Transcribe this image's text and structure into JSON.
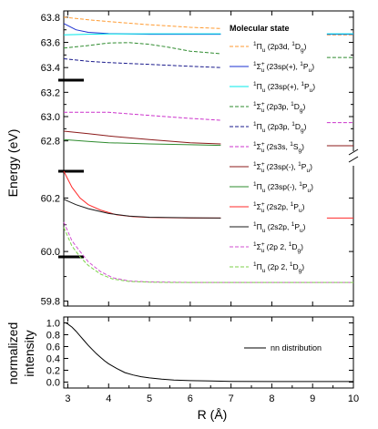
{
  "chart_data": [
    {
      "type": "line",
      "panel": "top",
      "ylabel": "Energy (eV)",
      "xlim": [
        2.9,
        10
      ],
      "axis_break": true,
      "segments": [
        {
          "ylim": [
            63.3,
            63.85
          ],
          "yticks": [
            "63.4",
            "63.6",
            "63.8"
          ],
          "ytick_values": [
            63.4,
            63.6,
            63.8
          ]
        },
        {
          "ylim": [
            62.7,
            63.3
          ],
          "yticks": [
            "62.8",
            "63.0",
            "63.2"
          ],
          "ytick_values": [
            62.8,
            63.0,
            63.2
          ]
        },
        {
          "ylim": [
            60.3,
            62.7
          ],
          "yticks": [],
          "ytick_values": []
        },
        {
          "ylim": [
            59.98,
            60.3
          ],
          "yticks": [
            "60.0",
            "60.2"
          ],
          "ytick_values": [
            60.0,
            60.2
          ]
        },
        {
          "ylim": [
            59.78,
            59.98
          ],
          "yticks": [
            "59.8"
          ],
          "ytick_values": [
            59.8
          ]
        }
      ],
      "legend": {
        "title": "Molecular state",
        "position": "right",
        "entries": [
          {
            "sym": "Π",
            "sign": "",
            "sp": "u",
            "conf": "2p3d",
            "lsym": "D",
            "lsub": "g"
          },
          {
            "sym": "Σ",
            "sign": "+",
            "sp": "u",
            "conf": "23sp(+)",
            "lsym": "P",
            "lsub": "u"
          },
          {
            "sym": "Π",
            "sign": "",
            "sp": "u",
            "conf": "23sp(+)",
            "lsym": "P",
            "lsub": "u"
          },
          {
            "sym": "Σ",
            "sign": "+",
            "sp": "u",
            "conf": "2p3p",
            "lsym": "D",
            "lsub": "g"
          },
          {
            "sym": "Π",
            "sign": "",
            "sp": "u",
            "conf": "2p3p",
            "lsym": "D",
            "lsub": "g"
          },
          {
            "sym": "Σ",
            "sign": "+",
            "sp": "u",
            "conf": "2s3s",
            "lsym": "S",
            "lsub": "g"
          },
          {
            "sym": "Σ",
            "sign": "+",
            "sp": "u",
            "conf": "23sp(-)",
            "lsym": "P",
            "lsub": "u"
          },
          {
            "sym": "Π",
            "sign": "",
            "sp": "u",
            "conf": "23sp(-)",
            "lsym": "P",
            "lsub": "u"
          },
          {
            "sym": "Σ",
            "sign": "+",
            "sp": "u",
            "conf": "2s2p",
            "lsym": "P",
            "lsub": "u"
          },
          {
            "sym": "Π",
            "sign": "",
            "sp": "u",
            "conf": "2s2p",
            "lsym": "P",
            "lsub": "u"
          },
          {
            "sym": "Σ",
            "sign": "+",
            "sp": "u",
            "conf": "2p 2",
            "lsym": "D",
            "lsub": "g"
          },
          {
            "sym": "Π",
            "sign": "",
            "sp": "u",
            "conf": "2p 2",
            "lsym": "D",
            "lsub": "g"
          }
        ]
      },
      "series": [
        {
          "color": "#ff9a30",
          "dash": "4,2",
          "x": [
            2.9,
            3.5,
            4,
            5,
            6,
            6.75
          ],
          "y": [
            63.8,
            63.78,
            63.765,
            63.74,
            63.72,
            63.71
          ],
          "tail_y": 63.66
        },
        {
          "color": "#1a2fd0",
          "dash": "",
          "x": [
            2.9,
            3.2,
            3.5,
            4,
            5,
            6,
            6.75
          ],
          "y": [
            63.75,
            63.7,
            63.68,
            63.67,
            63.665,
            63.665,
            63.665
          ],
          "tail_y": 63.665
        },
        {
          "color": "#00e8e8",
          "dash": "",
          "x": [
            2.9,
            3.5,
            4,
            5,
            6,
            6.75
          ],
          "y": [
            63.66,
            63.665,
            63.667,
            63.668,
            63.668,
            63.668
          ],
          "tail_y": 63.668
        },
        {
          "color": "#2e8b2e",
          "dash": "4,2",
          "x": [
            2.9,
            3.5,
            4,
            4.5,
            5,
            5.5,
            6,
            6.75
          ],
          "y": [
            63.555,
            63.575,
            63.595,
            63.598,
            63.585,
            63.56,
            63.53,
            63.51
          ],
          "tail_y": 63.48
        },
        {
          "color": "#1a1a8c",
          "dash": "4,2",
          "x": [
            2.9,
            3.5,
            4,
            5,
            6,
            6.75
          ],
          "y": [
            63.47,
            63.45,
            63.44,
            63.425,
            63.41,
            63.4
          ],
          "tail_y": null
        },
        {
          "color": "#cc33cc",
          "dash": "4,2",
          "x": [
            2.9,
            3.5,
            4,
            5,
            6,
            6.75
          ],
          "y": [
            63.035,
            63.035,
            63.035,
            63.01,
            62.985,
            62.97
          ],
          "tail_y": 62.95
        },
        {
          "color": "#8b1a1a",
          "dash": "",
          "x": [
            2.9,
            3.5,
            4,
            5,
            6,
            6.75
          ],
          "y": [
            62.88,
            62.86,
            62.84,
            62.81,
            62.785,
            62.775
          ],
          "tail_y": 62.76
        },
        {
          "color": "#2e8b2e",
          "dash": "",
          "x": [
            2.9,
            3.5,
            4,
            5,
            6,
            6.75
          ],
          "y": [
            62.81,
            62.795,
            62.785,
            62.775,
            62.768,
            62.763
          ],
          "tail_y": null
        },
        {
          "color": "#ff2a2a",
          "dash": "",
          "x": [
            2.9,
            3.1,
            3.3,
            3.5,
            3.8,
            4.2,
            4.6,
            5,
            6,
            6.75
          ],
          "y": [
            60.3,
            60.24,
            60.2,
            60.175,
            60.155,
            60.137,
            60.13,
            60.127,
            60.125,
            60.125
          ],
          "tail_y": 60.125
        },
        {
          "color": "#1a1a1a",
          "dash": "",
          "x": [
            2.9,
            3.2,
            3.5,
            4,
            4.5,
            5,
            6,
            6.75
          ],
          "y": [
            60.195,
            60.175,
            60.16,
            60.142,
            60.132,
            60.128,
            60.126,
            60.125
          ],
          "tail_y": null
        },
        {
          "color": "#d24fd2",
          "dash": "4,2",
          "x": [
            2.9,
            3.1,
            3.3,
            3.5,
            3.8,
            4.1,
            4.5,
            5,
            5.5,
            6,
            7,
            8,
            9,
            10
          ],
          "y": [
            60.11,
            60.04,
            60.0,
            59.96,
            59.92,
            59.895,
            59.882,
            59.878,
            59.877,
            59.876,
            59.876,
            59.876,
            59.876,
            59.876
          ],
          "tail_y": null
        },
        {
          "color": "#7cd24a",
          "dash": "4,2",
          "x": [
            2.9,
            3.1,
            3.3,
            3.5,
            3.8,
            4.1,
            4.5,
            5,
            5.5,
            6,
            7,
            8,
            9,
            10
          ],
          "y": [
            60.09,
            60.02,
            59.98,
            59.945,
            59.91,
            59.89,
            59.88,
            59.877,
            59.876,
            59.876,
            59.876,
            59.876,
            59.876,
            59.876
          ],
          "tail_y": null
        }
      ]
    },
    {
      "type": "line",
      "panel": "bottom",
      "xlabel": "R (Å)",
      "ylabel": "normalized intensity",
      "xlim": [
        2.9,
        10
      ],
      "ylim": [
        -0.1,
        1.1
      ],
      "xticks": [
        "3",
        "4",
        "5",
        "6",
        "7",
        "8",
        "9",
        "10"
      ],
      "xtick_values": [
        3,
        4,
        5,
        6,
        7,
        8,
        9,
        10
      ],
      "yticks": [
        "0.0",
        "0.2",
        "0.4",
        "0.6",
        "0.8",
        "1.0"
      ],
      "ytick_values": [
        0,
        0.2,
        0.4,
        0.6,
        0.8,
        1.0
      ],
      "legend": {
        "position": "right",
        "label": "nn distribution"
      },
      "series": [
        {
          "name": "nn distribution",
          "color": "#000000",
          "x": [
            2.95,
            3.0,
            3.1,
            3.2,
            3.3,
            3.4,
            3.5,
            3.6,
            3.7,
            3.8,
            3.9,
            4.0,
            4.2,
            4.4,
            4.6,
            4.8,
            5.0,
            5.3,
            5.6,
            6.0,
            6.5,
            7,
            8,
            9,
            10
          ],
          "y": [
            1.0,
            0.98,
            0.93,
            0.86,
            0.78,
            0.7,
            0.62,
            0.55,
            0.48,
            0.42,
            0.36,
            0.31,
            0.23,
            0.16,
            0.12,
            0.09,
            0.07,
            0.05,
            0.035,
            0.025,
            0.018,
            0.012,
            0.01,
            0.01,
            0.01
          ]
        }
      ]
    }
  ]
}
